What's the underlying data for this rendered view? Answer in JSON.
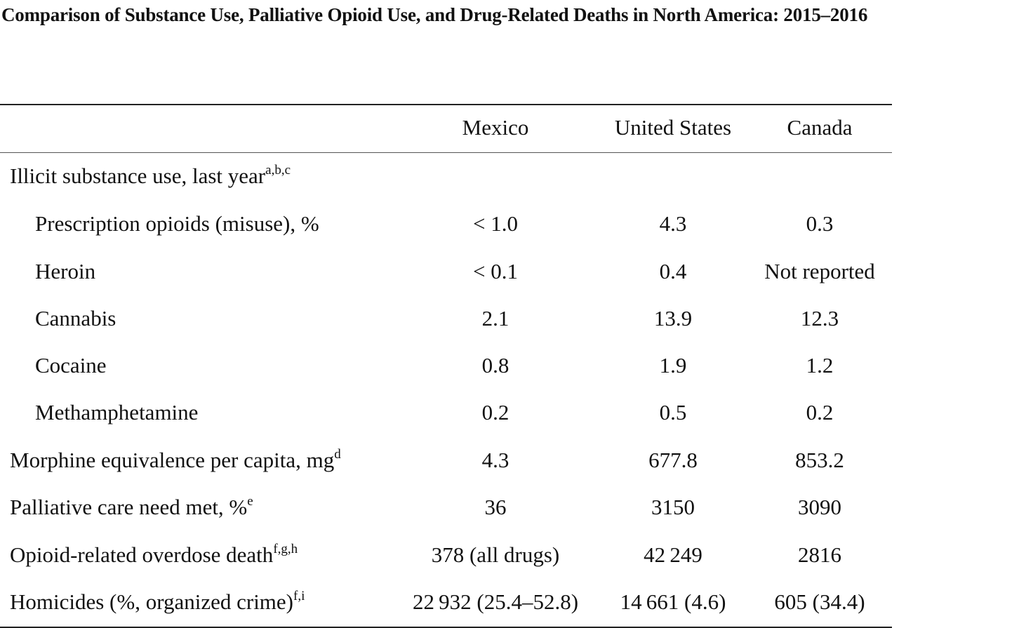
{
  "title": "Comparison of Substance Use, Palliative Opioid Use, and Drug-Related Deaths in North America: 2015–2016",
  "columns": [
    "Mexico",
    "United States",
    "Canada"
  ],
  "section_header": {
    "label": "Illicit substance use, last year",
    "sup": "a,b,c"
  },
  "sub_rows": [
    {
      "label": "Prescription opioids (misuse), %",
      "values": [
        "< 1.0",
        "4.3",
        "0.3"
      ]
    },
    {
      "label": "Heroin",
      "values": [
        "< 0.1",
        "0.4",
        "Not reported"
      ]
    },
    {
      "label": "Cannabis",
      "values": [
        "2.1",
        "13.9",
        "12.3"
      ]
    },
    {
      "label": "Cocaine",
      "values": [
        "0.8",
        "1.9",
        "1.2"
      ]
    },
    {
      "label": "Methamphetamine",
      "values": [
        "0.2",
        "0.5",
        "0.2"
      ]
    }
  ],
  "main_rows": [
    {
      "label": "Morphine equivalence per capita, mg",
      "sup": "d",
      "values": [
        "4.3",
        "677.8",
        "853.2"
      ]
    },
    {
      "label": "Palliative care need met, %",
      "sup": "e",
      "values": [
        "36",
        "3150",
        "3090"
      ]
    },
    {
      "label": "Opioid-related overdose death",
      "sup": "f,g,h",
      "values": [
        "378 (all drugs)",
        "42 249",
        "2816"
      ]
    },
    {
      "label": "Homicides (%, organized crime)",
      "sup": "f,i",
      "values": [
        "22 932 (25.4–52.8)",
        "14 661 (4.6)",
        "605 (34.4)"
      ]
    }
  ]
}
